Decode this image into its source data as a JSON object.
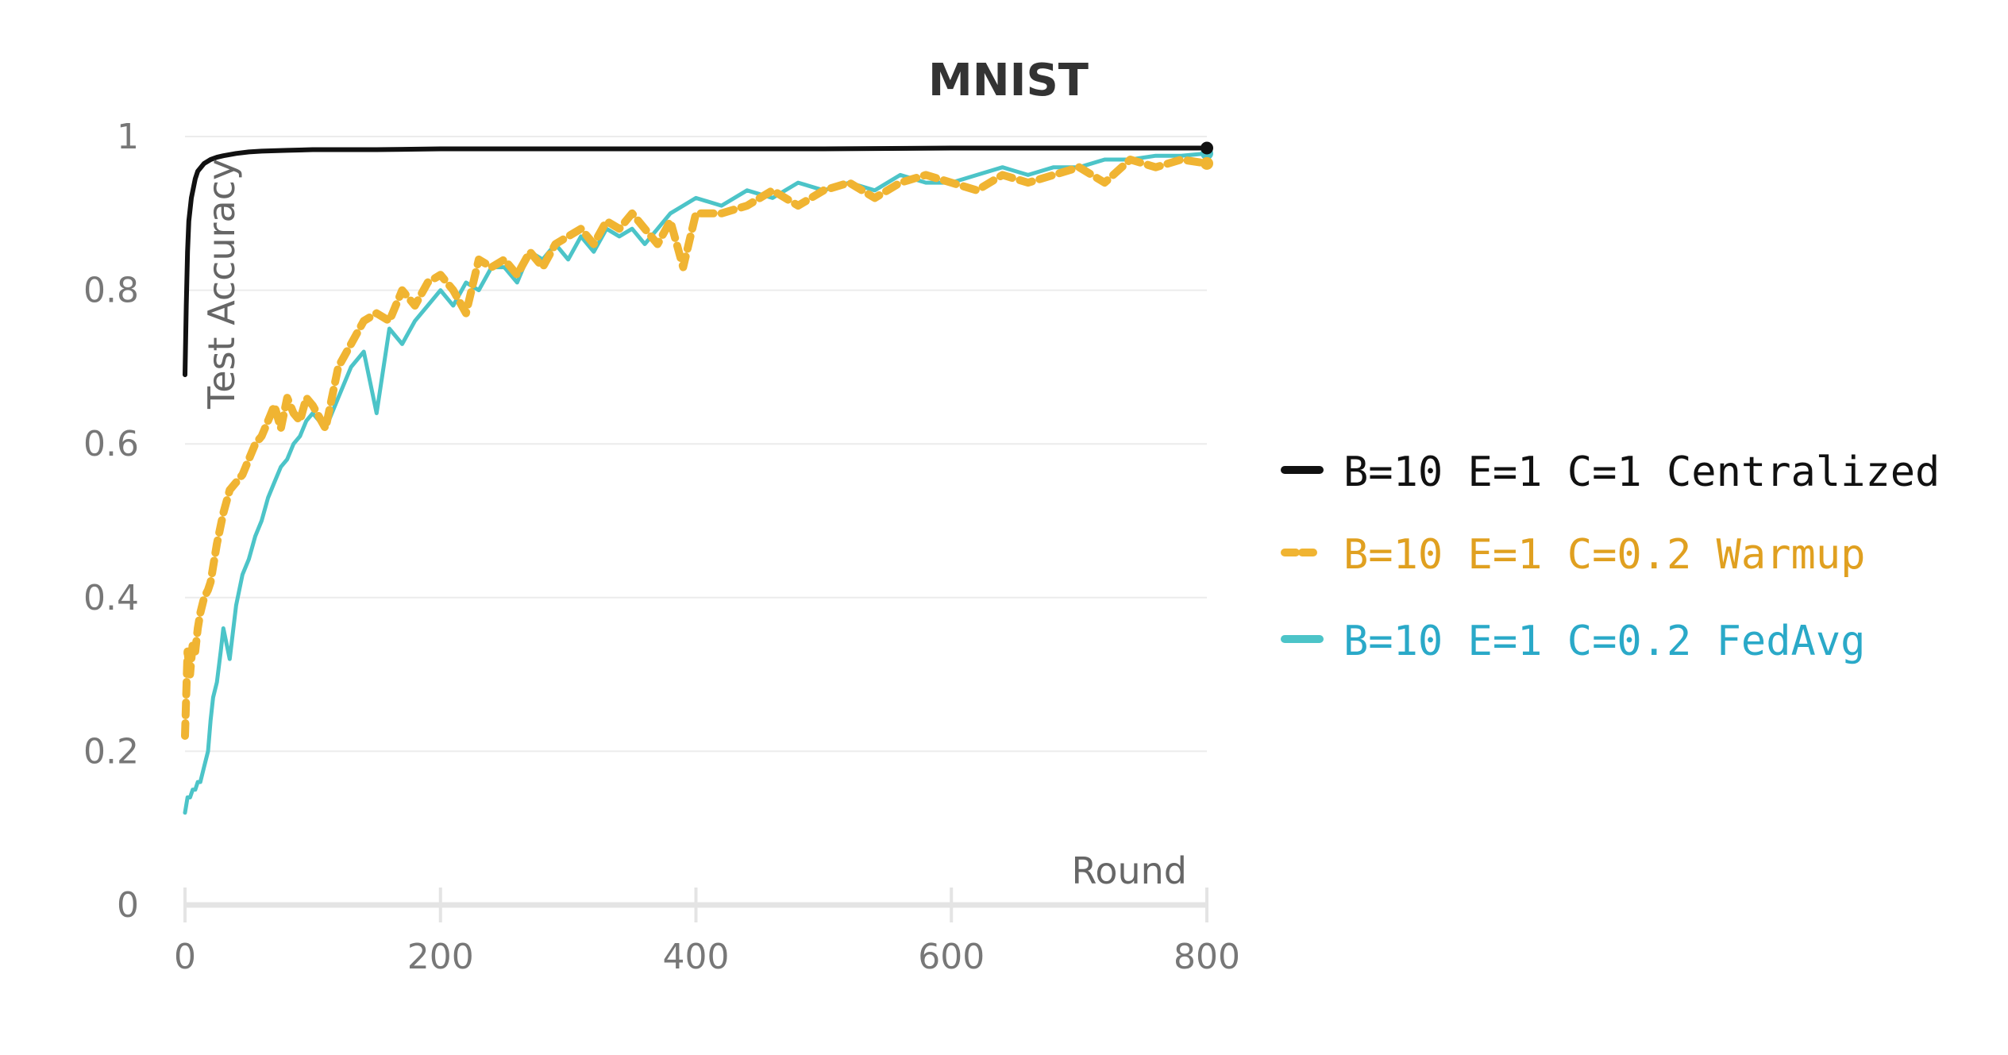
{
  "chart_data": {
    "type": "line",
    "title": "MNIST",
    "xlabel": "Round",
    "ylabel": "Test Accuracy",
    "xlim": [
      0,
      800
    ],
    "ylim": [
      0,
      1
    ],
    "x_ticks": [
      "0",
      "200",
      "400",
      "600",
      "800"
    ],
    "y_ticks": [
      "0",
      "0.2",
      "0.4",
      "0.6",
      "0.8",
      "1"
    ],
    "grid": true,
    "legend_position": "right",
    "series": [
      {
        "name": "B=10 E=1 C=1 Centralized",
        "color": "#111111",
        "style": "solid",
        "x": [
          0,
          1,
          2,
          3,
          5,
          8,
          10,
          15,
          20,
          25,
          30,
          40,
          50,
          60,
          80,
          100,
          150,
          200,
          300,
          400,
          500,
          600,
          700,
          800
        ],
        "y": [
          0.69,
          0.78,
          0.85,
          0.89,
          0.92,
          0.945,
          0.955,
          0.965,
          0.97,
          0.973,
          0.975,
          0.978,
          0.98,
          0.981,
          0.982,
          0.983,
          0.983,
          0.984,
          0.984,
          0.984,
          0.984,
          0.985,
          0.985,
          0.985
        ]
      },
      {
        "name": "B=10 E=1 C=0.2 Warmup",
        "color": "#f0b432",
        "style": "dashed",
        "x": [
          0,
          2,
          4,
          6,
          8,
          10,
          12,
          15,
          18,
          20,
          25,
          30,
          35,
          40,
          45,
          50,
          55,
          60,
          65,
          70,
          75,
          80,
          85,
          90,
          95,
          100,
          110,
          120,
          130,
          140,
          150,
          160,
          170,
          180,
          190,
          200,
          210,
          220,
          230,
          240,
          250,
          260,
          270,
          280,
          290,
          300,
          310,
          320,
          330,
          340,
          350,
          360,
          370,
          380,
          390,
          400,
          420,
          440,
          460,
          480,
          500,
          520,
          540,
          560,
          580,
          600,
          620,
          640,
          660,
          680,
          700,
          720,
          740,
          760,
          780,
          800
        ],
        "y": [
          0.22,
          0.33,
          0.3,
          0.34,
          0.33,
          0.36,
          0.38,
          0.4,
          0.41,
          0.42,
          0.47,
          0.51,
          0.54,
          0.55,
          0.56,
          0.58,
          0.6,
          0.61,
          0.63,
          0.65,
          0.62,
          0.66,
          0.64,
          0.63,
          0.66,
          0.65,
          0.62,
          0.7,
          0.73,
          0.76,
          0.77,
          0.76,
          0.8,
          0.78,
          0.81,
          0.82,
          0.8,
          0.77,
          0.84,
          0.83,
          0.84,
          0.82,
          0.85,
          0.83,
          0.86,
          0.87,
          0.88,
          0.86,
          0.89,
          0.88,
          0.9,
          0.88,
          0.86,
          0.89,
          0.83,
          0.9,
          0.9,
          0.91,
          0.93,
          0.91,
          0.93,
          0.94,
          0.92,
          0.94,
          0.95,
          0.94,
          0.93,
          0.95,
          0.94,
          0.95,
          0.96,
          0.94,
          0.97,
          0.96,
          0.97,
          0.965
        ]
      },
      {
        "name": "B=10 E=1 C=0.2 FedAvg",
        "color": "#4cc4c8",
        "style": "solid",
        "x": [
          0,
          2,
          4,
          6,
          8,
          10,
          12,
          15,
          18,
          20,
          22,
          25,
          28,
          30,
          35,
          40,
          45,
          50,
          55,
          60,
          65,
          70,
          75,
          80,
          85,
          90,
          95,
          100,
          110,
          120,
          130,
          140,
          150,
          160,
          170,
          180,
          190,
          200,
          210,
          220,
          230,
          240,
          250,
          260,
          270,
          280,
          290,
          300,
          310,
          320,
          330,
          340,
          350,
          360,
          370,
          380,
          390,
          400,
          420,
          440,
          460,
          480,
          500,
          520,
          540,
          560,
          580,
          600,
          620,
          640,
          660,
          680,
          700,
          720,
          740,
          760,
          780,
          800
        ],
        "y": [
          0.12,
          0.14,
          0.14,
          0.15,
          0.15,
          0.16,
          0.16,
          0.18,
          0.2,
          0.24,
          0.27,
          0.29,
          0.33,
          0.36,
          0.32,
          0.39,
          0.43,
          0.45,
          0.48,
          0.5,
          0.53,
          0.55,
          0.57,
          0.58,
          0.6,
          0.61,
          0.63,
          0.64,
          0.62,
          0.66,
          0.7,
          0.72,
          0.64,
          0.75,
          0.73,
          0.76,
          0.78,
          0.8,
          0.78,
          0.81,
          0.8,
          0.83,
          0.83,
          0.81,
          0.85,
          0.84,
          0.86,
          0.84,
          0.87,
          0.85,
          0.88,
          0.87,
          0.88,
          0.86,
          0.88,
          0.9,
          0.91,
          0.92,
          0.91,
          0.93,
          0.92,
          0.94,
          0.93,
          0.94,
          0.93,
          0.95,
          0.94,
          0.94,
          0.95,
          0.96,
          0.95,
          0.96,
          0.96,
          0.97,
          0.97,
          0.975,
          0.975,
          0.978
        ]
      }
    ]
  }
}
